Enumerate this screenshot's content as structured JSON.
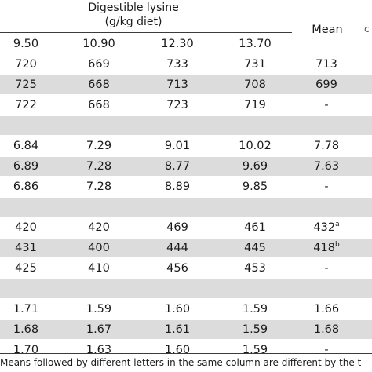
{
  "header": {
    "group_title_line1": "Digestible lysine",
    "group_title_line2": "(g/kg diet)",
    "columns": [
      "9.50",
      "10.90",
      "12.30",
      "13.70"
    ],
    "mean_label": "Mean",
    "clipped_mark": "c"
  },
  "rows": [
    {
      "cells": [
        "720",
        "669",
        "733",
        "731",
        "713"
      ],
      "sup": ""
    },
    {
      "cells": [
        "725",
        "668",
        "713",
        "708",
        "699"
      ],
      "sup": ""
    },
    {
      "cells": [
        "722",
        "668",
        "723",
        "719",
        "-"
      ],
      "sup": ""
    },
    {
      "cells": [
        "",
        "",
        "",
        "",
        ""
      ],
      "sup": ""
    },
    {
      "cells": [
        "6.84",
        "7.29",
        "9.01",
        "10.02",
        "7.78"
      ],
      "sup": ""
    },
    {
      "cells": [
        "6.89",
        "7.28",
        "8.77",
        "9.69",
        "7.63"
      ],
      "sup": ""
    },
    {
      "cells": [
        "6.86",
        "7.28",
        "8.89",
        "9.85",
        "-"
      ],
      "sup": ""
    },
    {
      "cells": [
        "",
        "",
        "",
        "",
        ""
      ],
      "sup": ""
    },
    {
      "cells": [
        "420",
        "420",
        "469",
        "461",
        "432"
      ],
      "sup": "a"
    },
    {
      "cells": [
        "431",
        "400",
        "444",
        "445",
        "418"
      ],
      "sup": "b"
    },
    {
      "cells": [
        "425",
        "410",
        "456",
        "453",
        "-"
      ],
      "sup": ""
    },
    {
      "cells": [
        "",
        "",
        "",
        "",
        ""
      ],
      "sup": ""
    },
    {
      "cells": [
        "1.71",
        "1.59",
        "1.60",
        "1.59",
        "1.66"
      ],
      "sup": ""
    },
    {
      "cells": [
        "1.68",
        "1.67",
        "1.61",
        "1.59",
        "1.68"
      ],
      "sup": ""
    },
    {
      "cells": [
        "1.70",
        "1.63",
        "1.60",
        "1.59",
        "-"
      ],
      "sup": ""
    }
  ],
  "footnote": "Means followed by different letters in the same column are different by the t"
}
